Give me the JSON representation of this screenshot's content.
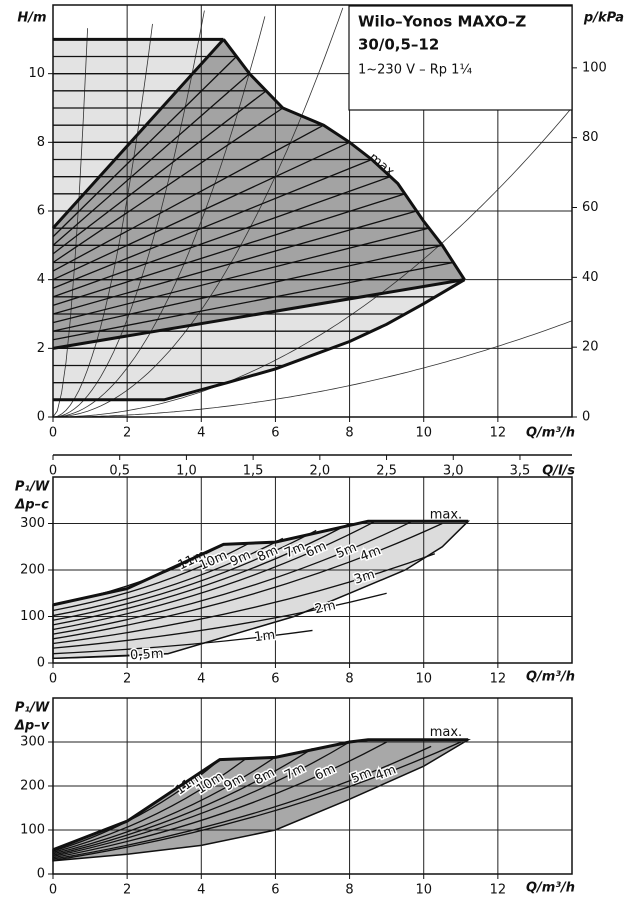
{
  "chart_data": [
    {
      "type": "pump-head",
      "title": "Wilo–Yonos MAXO–Z",
      "subtitle": "30/0,5–12",
      "note": "1~230 V – Rp 1¼",
      "x_label": "Q/m³/h",
      "y_label": "H/m",
      "y2_label": "p/kPa",
      "x2_label": "Q/l/s",
      "annotation": "max.",
      "xlim": [
        0,
        14
      ],
      "xticks": [
        0,
        2,
        4,
        6,
        8,
        10,
        12
      ],
      "ylim": [
        0,
        12
      ],
      "yticks": [
        0,
        2,
        4,
        6,
        8,
        10
      ],
      "y2lim": [
        0,
        118
      ],
      "y2ticks": [
        0,
        20,
        40,
        60,
        80,
        100
      ],
      "x2lim": [
        0,
        3.89
      ],
      "x2ticks": [
        0,
        {
          "value": 0.5,
          "label": "0,5"
        },
        {
          "value": 1.0,
          "label": "1,0"
        },
        {
          "value": 1.5,
          "label": "1,5"
        },
        {
          "value": 2.0,
          "label": "2,0"
        },
        {
          "value": 2.5,
          "label": "2,5"
        },
        {
          "value": 3.0,
          "label": "3,0"
        },
        {
          "value": 3.5,
          "label": "3,5"
        }
      ],
      "grid": true,
      "max_curve": {
        "x": [
          4.6,
          5.3,
          6.2,
          7.3,
          8.0,
          8.6,
          9.3,
          10.0,
          10.5,
          11.1
        ],
        "y": [
          11,
          10,
          9,
          8.5,
          8,
          7.5,
          6.8,
          5.7,
          5,
          4
        ]
      },
      "min_curve": {
        "x": [
          0,
          3,
          4.7,
          6,
          7,
          8,
          9,
          10,
          11.1
        ],
        "y": [
          0.5,
          0.5,
          1,
          1.4,
          1.8,
          2.2,
          2.7,
          3.3,
          4
        ]
      },
      "dp_c_heads": [
        0.5,
        1,
        1.5,
        2,
        2.5,
        3,
        3.5,
        4,
        4.5,
        5,
        5.5,
        6,
        6.5,
        7,
        7.5,
        8,
        8.5,
        9,
        9.5,
        10,
        10.5,
        11
      ],
      "dp_v_heads": [
        4,
        4.5,
        5,
        5.5,
        6,
        6.5,
        7,
        7.5,
        8,
        8.5,
        9,
        9.5,
        10,
        10.5,
        11
      ],
      "system_curve_k": [
        0.0143,
        0.046,
        0.195,
        0.357,
        0.71,
        1.59,
        13
      ],
      "light_color": "#e3e3e3",
      "dark_color": "#a3a3a3"
    },
    {
      "type": "power",
      "x_label": "Q/m³/h",
      "y_label": "P₁/W",
      "y_label2": "Δp–c",
      "annotation": "max.",
      "xlim": [
        0,
        14
      ],
      "xticks": [
        0,
        2,
        4,
        6,
        8,
        10,
        12
      ],
      "ylim": [
        0,
        400
      ],
      "yticks": [
        0,
        100,
        200,
        300
      ],
      "grid": true,
      "fill_color": "#dcdcdc",
      "envelope": {
        "x": [
          0,
          2,
          4.6,
          6,
          8.5,
          11.2,
          10.5,
          9.5,
          8,
          6.5,
          3.1,
          0
        ],
        "y": [
          125,
          160,
          255,
          260,
          305,
          305,
          250,
          200,
          150,
          100,
          20,
          10
        ]
      },
      "max_line": {
        "x": [
          0,
          2,
          4.6,
          6,
          8.5,
          11.2
        ],
        "y": [
          125,
          160,
          255,
          260,
          305,
          305
        ]
      },
      "series": [
        {
          "name": "11m",
          "x": [
            0,
            4.6
          ],
          "y": [
            125,
            255
          ]
        },
        {
          "name": "10m",
          "x": [
            0,
            5.3
          ],
          "y": [
            113,
            258
          ]
        },
        {
          "name": "9m",
          "x": [
            0,
            6.2
          ],
          "y": [
            102,
            268
          ]
        },
        {
          "name": "8m",
          "x": [
            0,
            7.1
          ],
          "y": [
            92,
            285
          ]
        },
        {
          "name": "7m",
          "x": [
            0,
            8.0
          ],
          "y": [
            82,
            300
          ]
        },
        {
          "name": "6m",
          "x": [
            0,
            8.7
          ],
          "y": [
            72,
            305
          ]
        },
        {
          "name": "5m",
          "x": [
            0,
            9.7
          ],
          "y": [
            62,
            305
          ]
        },
        {
          "name": "4m",
          "x": [
            0,
            10.5
          ],
          "y": [
            52,
            300
          ]
        },
        {
          "name": "3m",
          "x": [
            0,
            10.3
          ],
          "y": [
            42,
            235
          ]
        },
        {
          "name": "2m",
          "x": [
            0,
            9.0
          ],
          "y": [
            32,
            150
          ]
        },
        {
          "name": "1m",
          "x": [
            0,
            7.0
          ],
          "y": [
            20,
            70
          ]
        },
        {
          "name": "0,5m",
          "x": [
            0,
            3.1
          ],
          "y": [
            10,
            20
          ]
        }
      ]
    },
    {
      "type": "power",
      "x_label": "Q/m³/h",
      "y_label": "P₁/W",
      "y_label2": "Δp–v",
      "annotation": "max.",
      "xlim": [
        0,
        14
      ],
      "xticks": [
        0,
        2,
        4,
        6,
        8,
        10,
        12
      ],
      "ylim": [
        0,
        400
      ],
      "yticks": [
        0,
        100,
        200,
        300
      ],
      "grid": true,
      "fill_color": "#a8a8a8",
      "envelope": {
        "x": [
          0,
          2,
          4.5,
          6,
          8,
          8.5,
          11.2,
          10,
          8,
          6,
          4,
          2,
          0
        ],
        "y": [
          55,
          120,
          260,
          265,
          300,
          305,
          305,
          245,
          170,
          100,
          65,
          45,
          30
        ]
      },
      "max_line": {
        "x": [
          0,
          2,
          4.5,
          6,
          8,
          8.5,
          11.2
        ],
        "y": [
          55,
          120,
          260,
          265,
          300,
          305,
          305
        ]
      },
      "series": [
        {
          "name": "11m",
          "x": [
            0,
            4.5
          ],
          "y": [
            52,
            260
          ]
        },
        {
          "name": "10m",
          "x": [
            0,
            5.2
          ],
          "y": [
            49,
            262
          ]
        },
        {
          "name": "9m",
          "x": [
            0,
            6.0
          ],
          "y": [
            46,
            266
          ]
        },
        {
          "name": "8m",
          "x": [
            0,
            7.0
          ],
          "y": [
            43,
            285
          ]
        },
        {
          "name": "7m",
          "x": [
            0,
            8.0
          ],
          "y": [
            40,
            300
          ]
        },
        {
          "name": "6m",
          "x": [
            0,
            9.0
          ],
          "y": [
            37,
            300
          ]
        },
        {
          "name": "5m",
          "x": [
            0,
            10.2
          ],
          "y": [
            34,
            290
          ]
        },
        {
          "name": "4m",
          "x": [
            0,
            11.0
          ],
          "y": [
            31,
            300
          ]
        }
      ]
    }
  ]
}
